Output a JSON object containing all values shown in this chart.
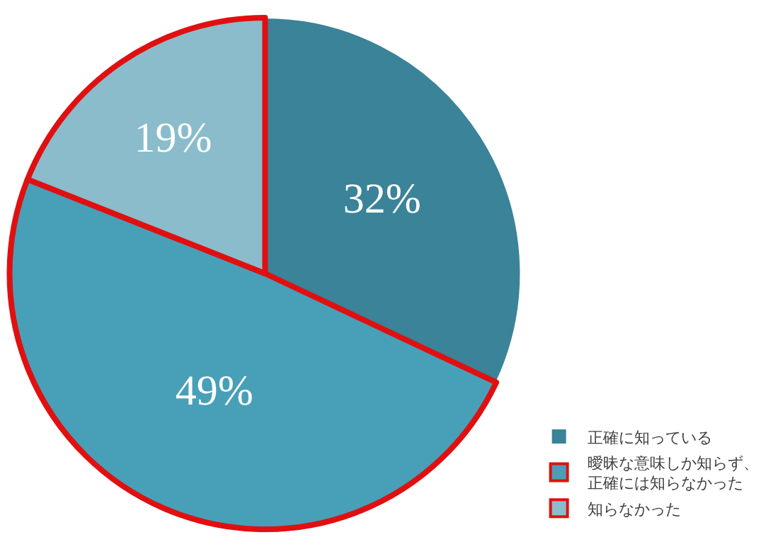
{
  "chart_data": {
    "type": "pie",
    "categories": [
      "正確に知っている",
      "曖昧な意味しか知らず、正確には知らなかった",
      "知らなかった"
    ],
    "values": [
      32,
      49,
      19
    ],
    "colors": [
      "#3a8398",
      "#47a0b8",
      "#8abccb"
    ],
    "value_labels": [
      "32%",
      "49%",
      "19%"
    ],
    "legend": "bottom right"
  }
}
